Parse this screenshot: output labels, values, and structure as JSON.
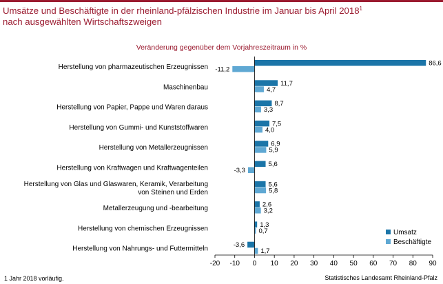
{
  "title_line1": "Umsätze und Beschäftigte in der rheinland-pfälzischen Industrie im Januar bis April 2018",
  "title_sup": "1",
  "title_line2": "nach ausgewählten Wirtschaftszweigen",
  "subtitle": "Veränderung gegenüber dem Vorjahreszeitraum in %",
  "footnote": "1 Jahr 2018 vorläufig.",
  "source": "Statistisches Landesamt Rheinland-Pfalz",
  "colors": {
    "umsatz": "#1b75a8",
    "beschaeftigte": "#5fa8d3",
    "accent": "#9b1b30"
  },
  "chart_data": {
    "type": "bar",
    "orientation": "horizontal",
    "categories": [
      [
        "Herstellung von pharmazeutischen Erzeugnissen"
      ],
      [
        "Maschinenbau"
      ],
      [
        "Herstellung von Papier, Pappe und Waren daraus"
      ],
      [
        "Herstellung von Gummi- und Kunststoffwaren"
      ],
      [
        "Herstellung von Metallerzeugnissen"
      ],
      [
        "Herstellung von Kraftwagen und Kraftwagenteilen"
      ],
      [
        "Herstellung von Glas und Glaswaren, Keramik, Verarbeitung",
        "von Steinen und Erden"
      ],
      [
        "Metallerzeugung und -bearbeitung"
      ],
      [
        "Herstellung von chemischen Erzeugnissen"
      ],
      [
        "Herstellung von Nahrungs- und Futtermitteln"
      ]
    ],
    "series": [
      {
        "name": "Umsatz",
        "values": [
          86.6,
          11.7,
          8.7,
          7.5,
          6.9,
          5.6,
          5.6,
          2.6,
          1.3,
          -3.6
        ],
        "labels": [
          "86,6",
          "11,7",
          "8,7",
          "7,5",
          "6,9",
          "5,6",
          "5,6",
          "2,6",
          "1,3",
          "-3,6"
        ]
      },
      {
        "name": "Beschäftigte",
        "values": [
          -11.2,
          4.7,
          3.3,
          4.0,
          5.9,
          -3.3,
          5.8,
          3.2,
          0.7,
          1.7
        ],
        "labels": [
          "-11,2",
          "4,7",
          "3,3",
          "4,0",
          "5,9",
          "-3,3",
          "5,8",
          "3,2",
          "0,7",
          "1,7"
        ]
      }
    ],
    "xlim": [
      -20,
      90
    ],
    "xticks": [
      -20,
      -10,
      0,
      10,
      20,
      30,
      40,
      50,
      60,
      70,
      80,
      90
    ],
    "xtick_labels": [
      "-20",
      "-10",
      "0",
      "10",
      "20",
      "30",
      "40",
      "50",
      "60",
      "70",
      "80",
      "90"
    ],
    "grid": false,
    "legend_position": "bottom-right"
  }
}
